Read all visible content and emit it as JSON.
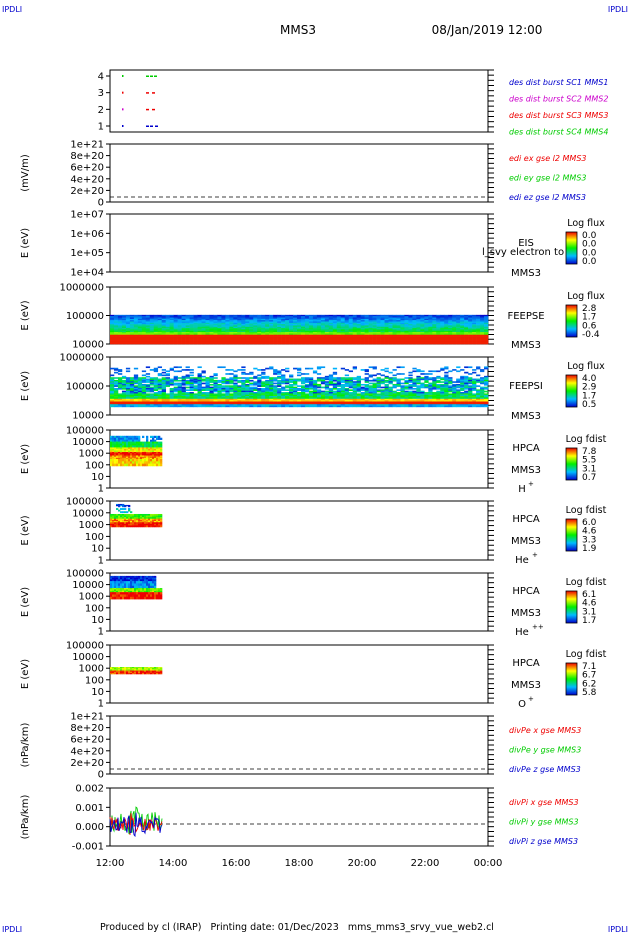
{
  "corners": {
    "top_left": "IPDLI",
    "top_right": "IPDLI",
    "bottom_left": "IPDLI",
    "bottom_right": "IPDLI"
  },
  "header": {
    "title": "MMS3",
    "datetime": "08/Jan/2019 12:00"
  },
  "footer": {
    "text": "Produced by cl (IRAP)   Printing date: 01/Dec/2023   mms_mms3_srvy_vue_web2.cl"
  },
  "colors": {
    "mms1": "#0000cc",
    "mms2": "#cc00cc",
    "mms3": "#ee0000",
    "mms4": "#00cc00",
    "dashed": "#000000"
  },
  "x_axis": {
    "ticks": [
      "12:00",
      "14:00",
      "16:00",
      "18:00",
      "20:00",
      "22:00",
      "00:00"
    ]
  },
  "chart_data": [
    {
      "type": "scatter",
      "yticks": [
        "4",
        "3",
        "2",
        "1"
      ],
      "ylabel": "",
      "legend": [
        "des dist burst SC1 MMS1",
        "des dist burst SC2 MMS2",
        "des dist burst SC3 MMS3",
        "des dist burst SC4 MMS4"
      ]
    },
    {
      "type": "line",
      "yticks": [
        "1e+21",
        "8e+20",
        "6e+20",
        "4e+20",
        "2e+20",
        "0"
      ],
      "ylabel": "(mV/m)",
      "legend": [
        "edi ex gse l2 MMS3",
        "edi ey gse l2 MMS3",
        "edi ez gse l2 MMS3"
      ]
    },
    {
      "type": "heatmap",
      "yticks": [
        "1e+07",
        "1e+06",
        "1e+05",
        "1e+04"
      ],
      "ylabel": "E (eV)",
      "instrument": [
        "EIS",
        "MMS3"
      ],
      "overlay": "l_svy electron to",
      "colorbar": {
        "title": "Log flux",
        "labels": [
          "0.0",
          "0.0",
          "0.0",
          "0.0"
        ]
      }
    },
    {
      "type": "heatmap",
      "yticks": [
        "1000000",
        "100000",
        "10000"
      ],
      "ylabel": "E (eV)",
      "instrument": [
        "FEEPSE",
        "MMS3"
      ],
      "colorbar": {
        "title": "Log flux",
        "labels": [
          "2.8",
          "1.7",
          "0.6",
          "-0.4"
        ]
      }
    },
    {
      "type": "heatmap",
      "yticks": [
        "1000000",
        "100000",
        "10000"
      ],
      "ylabel": "E (eV)",
      "instrument": [
        "FEEPSI",
        "MMS3"
      ],
      "colorbar": {
        "title": "Log flux",
        "labels": [
          "4.0",
          "2.9",
          "1.7",
          "0.5"
        ]
      }
    },
    {
      "type": "heatmap",
      "yticks": [
        "100000",
        "10000",
        "1000",
        "100",
        "10",
        "1"
      ],
      "ylabel": "E (eV)",
      "instrument": [
        "HPCA",
        "MMS3"
      ],
      "species": "H",
      "species_sup": "+",
      "colorbar": {
        "title": "Log fdist",
        "labels": [
          "7.8",
          "5.5",
          "3.1",
          "0.7"
        ]
      }
    },
    {
      "type": "heatmap",
      "yticks": [
        "100000",
        "10000",
        "1000",
        "100",
        "10",
        "1"
      ],
      "ylabel": "E (eV)",
      "instrument": [
        "HPCA",
        "MMS3"
      ],
      "species": "He",
      "species_sup": "+",
      "colorbar": {
        "title": "Log fdist",
        "labels": [
          "6.0",
          "4.6",
          "3.3",
          "1.9"
        ]
      }
    },
    {
      "type": "heatmap",
      "yticks": [
        "100000",
        "10000",
        "1000",
        "100",
        "10",
        "1"
      ],
      "ylabel": "E (eV)",
      "instrument": [
        "HPCA",
        "MMS3"
      ],
      "species": "He",
      "species_sup": "++",
      "colorbar": {
        "title": "Log fdist",
        "labels": [
          "6.1",
          "4.6",
          "3.1",
          "1.7"
        ]
      }
    },
    {
      "type": "heatmap",
      "yticks": [
        "100000",
        "10000",
        "1000",
        "100",
        "10",
        "1"
      ],
      "ylabel": "E (eV)",
      "instrument": [
        "HPCA",
        "MMS3"
      ],
      "species": "O",
      "species_sup": "+",
      "colorbar": {
        "title": "Log fdist",
        "labels": [
          "7.1",
          "6.7",
          "6.2",
          "5.8"
        ]
      }
    },
    {
      "type": "line",
      "yticks": [
        "1e+21",
        "8e+20",
        "6e+20",
        "4e+20",
        "2e+20",
        "0"
      ],
      "ylabel": "(nPa/km)",
      "legend": [
        "divPe x gse MMS3",
        "divPe y gse MMS3",
        "divPe z gse MMS3"
      ]
    },
    {
      "type": "line",
      "yticks": [
        "0.002",
        "0.001",
        "0.000",
        "-0.001"
      ],
      "ylabel": "(nPa/km)",
      "legend": [
        "divPi x gse MMS3",
        "divPi y gse MMS3",
        "divPi z gse MMS3"
      ]
    }
  ]
}
